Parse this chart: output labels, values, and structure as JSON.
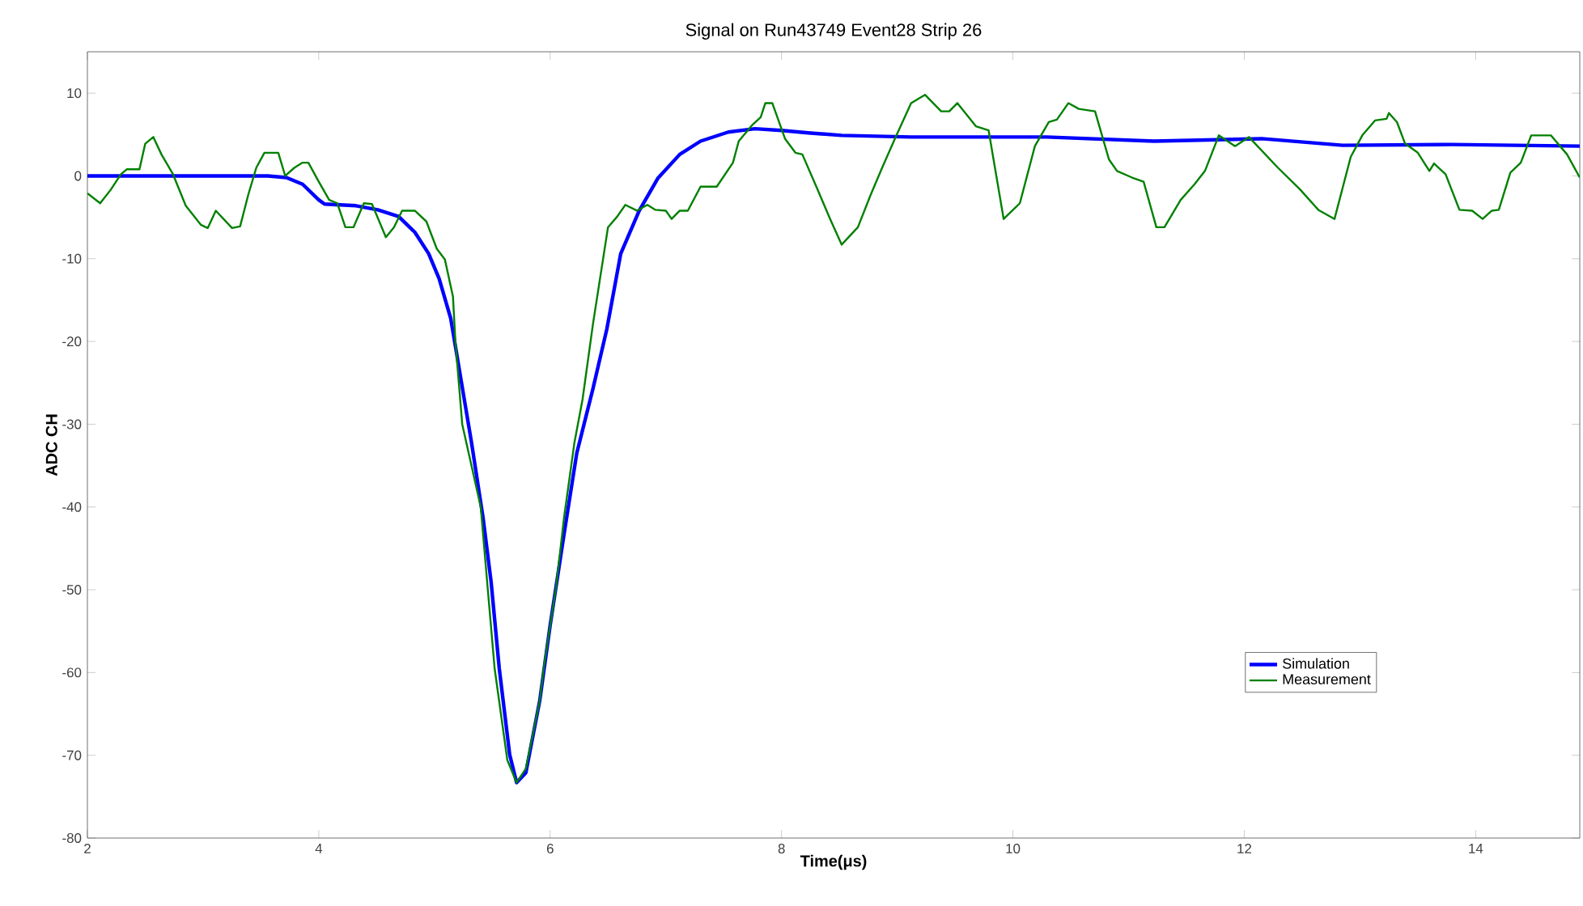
{
  "chart_data": {
    "type": "line",
    "title": "Signal on Run43749 Event28 Strip 26",
    "xlabel": "Time(μs)",
    "ylabel": "ADC CH",
    "xlim": [
      2,
      14.9
    ],
    "ylim": [
      -80,
      15
    ],
    "xticks": [
      2,
      4,
      6,
      8,
      10,
      12,
      14
    ],
    "yticks": [
      -80,
      -70,
      -60,
      -50,
      -40,
      -30,
      -20,
      -10,
      0,
      10
    ],
    "legend": "bottom right",
    "grid": false,
    "marker": "none",
    "line_style": "solid",
    "series": [
      {
        "name": "Simulation",
        "color": "#0000ff",
        "x": [
          2.0,
          3.0,
          3.56,
          3.72,
          3.86,
          4.0,
          4.05,
          4.32,
          4.51,
          4.69,
          4.83,
          4.95,
          5.04,
          5.14,
          5.18,
          5.32,
          5.42,
          5.49,
          5.56,
          5.65,
          5.71,
          5.79,
          5.91,
          6.0,
          6.12,
          6.23,
          6.37,
          6.49,
          6.61,
          6.77,
          6.93,
          7.12,
          7.3,
          7.54,
          7.77,
          8.0,
          8.23,
          8.52,
          9.12,
          10.29,
          11.22,
          12.15,
          12.85,
          13.79,
          14.9
        ],
        "values": [
          0,
          0,
          0,
          -0.2,
          -1.0,
          -2.9,
          -3.4,
          -3.6,
          -4.1,
          -4.9,
          -6.8,
          -9.4,
          -12.4,
          -17.2,
          -20.5,
          -32.2,
          -41.3,
          -49.1,
          -59.5,
          -69.9,
          -73.3,
          -72.1,
          -63.4,
          -54.3,
          -43.3,
          -33.5,
          -25.7,
          -18.5,
          -9.4,
          -4.2,
          -0.3,
          2.6,
          4.2,
          5.3,
          5.7,
          5.5,
          5.2,
          4.9,
          4.7,
          4.7,
          4.2,
          4.5,
          3.7,
          3.8,
          3.6
        ]
      },
      {
        "name": "Measurement",
        "color": "#008000",
        "x": [
          2.0,
          2.11,
          2.2,
          2.29,
          2.34,
          2.45,
          2.5,
          2.57,
          2.64,
          2.74,
          2.85,
          2.98,
          3.04,
          3.11,
          3.25,
          3.32,
          3.39,
          3.46,
          3.53,
          3.65,
          3.71,
          3.79,
          3.86,
          3.91,
          4.0,
          4.09,
          4.16,
          4.23,
          4.3,
          4.39,
          4.46,
          4.58,
          4.65,
          4.72,
          4.83,
          4.93,
          5.02,
          5.09,
          5.16,
          5.18,
          5.24,
          5.4,
          5.46,
          5.52,
          5.63,
          5.71,
          5.79,
          5.91,
          5.95,
          6.05,
          6.12,
          6.21,
          6.28,
          6.37,
          6.5,
          6.58,
          6.65,
          6.75,
          6.84,
          6.91,
          7.0,
          7.05,
          7.12,
          7.19,
          7.3,
          7.44,
          7.58,
          7.63,
          7.75,
          7.82,
          7.86,
          7.92,
          8.03,
          8.12,
          8.18,
          8.31,
          8.42,
          8.52,
          8.66,
          8.77,
          8.87,
          8.98,
          9.12,
          9.24,
          9.38,
          9.45,
          9.52,
          9.68,
          9.79,
          9.92,
          10.06,
          10.19,
          10.31,
          10.38,
          10.48,
          10.57,
          10.71,
          10.83,
          10.9,
          11.03,
          11.13,
          11.24,
          11.31,
          11.45,
          11.57,
          11.66,
          11.78,
          11.92,
          12.04,
          12.29,
          12.48,
          12.64,
          12.78,
          12.92,
          13.02,
          13.13,
          13.23,
          13.25,
          13.32,
          13.39,
          13.5,
          13.6,
          13.64,
          13.74,
          13.86,
          13.97,
          14.06,
          14.14,
          14.2,
          14.3,
          14.39,
          14.48,
          14.65,
          14.79,
          14.9
        ],
        "values": [
          -2.1,
          -3.3,
          -1.7,
          0.2,
          0.8,
          0.8,
          3.9,
          4.7,
          2.6,
          0.2,
          -3.6,
          -5.9,
          -6.3,
          -4.2,
          -6.3,
          -6.1,
          -2.3,
          1.0,
          2.8,
          2.8,
          0,
          1.0,
          1.6,
          1.6,
          -0.7,
          -2.9,
          -3.3,
          -6.2,
          -6.2,
          -3.3,
          -3.4,
          -7.4,
          -6.2,
          -4.2,
          -4.2,
          -5.5,
          -8.8,
          -10.1,
          -14.6,
          -19.8,
          -30.0,
          -40.0,
          -49.8,
          -59.5,
          -70.6,
          -73.3,
          -71.6,
          -63.4,
          -58.9,
          -49.8,
          -41.3,
          -32.2,
          -27.0,
          -17.9,
          -6.2,
          -4.9,
          -3.5,
          -4.2,
          -3.5,
          -4.1,
          -4.2,
          -5.2,
          -4.2,
          -4.2,
          -1.3,
          -1.3,
          1.6,
          4.2,
          6.2,
          7.1,
          8.8,
          8.8,
          4.5,
          2.8,
          2.6,
          -1.6,
          -5.2,
          -8.3,
          -6.2,
          -2.3,
          1.0,
          4.5,
          8.8,
          9.8,
          7.8,
          7.8,
          8.8,
          6.0,
          5.5,
          -5.2,
          -3.3,
          3.6,
          6.5,
          6.8,
          8.8,
          8.1,
          7.8,
          2.0,
          0.6,
          -0.2,
          -0.7,
          -6.2,
          -6.2,
          -2.9,
          -1.0,
          0.6,
          4.9,
          3.6,
          4.7,
          1.0,
          -1.6,
          -4.1,
          -5.2,
          2.3,
          4.9,
          6.7,
          6.9,
          7.6,
          6.5,
          3.9,
          2.8,
          0.6,
          1.5,
          0.2,
          -4.1,
          -4.2,
          -5.2,
          -4.2,
          -4.1,
          0.4,
          1.6,
          4.9,
          4.9,
          2.6,
          -0.2
        ]
      }
    ]
  }
}
